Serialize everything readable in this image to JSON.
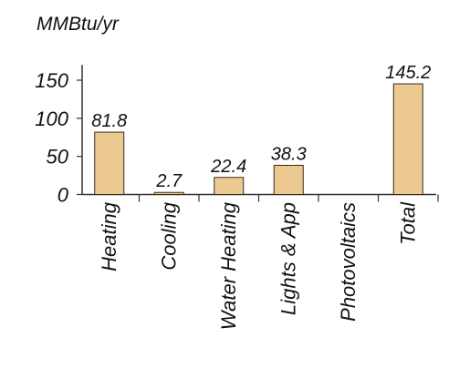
{
  "chart_data": {
    "type": "bar",
    "ylabel": "MMBtu/yr",
    "categories": [
      "Heating",
      "Cooling",
      "Water Heating",
      "Lights & App",
      "Photovoltaics",
      "Total"
    ],
    "values": [
      81.8,
      2.7,
      22.4,
      38.3,
      0,
      145.2
    ],
    "value_labels": [
      "81.8",
      "2.7",
      "22.4",
      "38.3",
      "",
      "145.2"
    ],
    "ylim": [
      0,
      170
    ],
    "yticks": [
      0,
      50,
      100,
      150
    ],
    "ytick_labels": [
      "0",
      "50",
      "100",
      "150"
    ],
    "grid": false,
    "legend": "none",
    "colors": {
      "bar": "#edc992",
      "bar_edge": "#3a2a1a",
      "axis": "#333333",
      "text": "#111111"
    }
  }
}
